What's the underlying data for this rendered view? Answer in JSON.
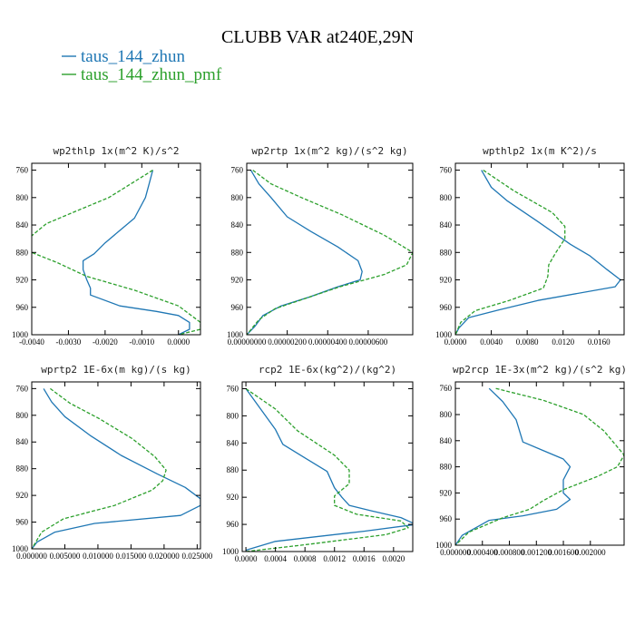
{
  "figure": {
    "title": "CLUBB VAR at240E,29N",
    "legend": [
      {
        "label": "taus_144_zhun",
        "color": "#1f77b4",
        "style": "solid"
      },
      {
        "label": "taus_144_zhun_pmf",
        "color": "#2ca02c",
        "style": "dashed"
      }
    ]
  },
  "chart_data": [
    {
      "type": "line",
      "title": "wp2thlp  1x(m^2 K)/s^2",
      "xlim": [
        -0.004,
        0.0006
      ],
      "ylim": [
        1000,
        750
      ],
      "xticks": [
        "-0.0040",
        "-0.0030",
        "-0.0020",
        "-0.0010",
        "0.0000"
      ],
      "xtick_values": [
        -0.004,
        -0.003,
        -0.002,
        -0.001,
        0.0
      ],
      "yticks": [
        760,
        800,
        840,
        880,
        920,
        960,
        1000
      ],
      "series": [
        {
          "name": "taus_144_zhun",
          "color": "#1f77b4",
          "style": "solid",
          "x": [
            -0.0007,
            -0.0008,
            -0.0009,
            -0.0012,
            -0.0016,
            -0.002,
            -0.0023,
            -0.0026,
            -0.0026,
            -0.0025,
            -0.0024,
            -0.0024,
            -0.0016,
            -0.0006,
            0.0,
            0.0003,
            0.0003,
            0.0
          ],
          "y": [
            760,
            780,
            800,
            830,
            848,
            866,
            882,
            892,
            905,
            920,
            932,
            942,
            958,
            966,
            972,
            982,
            992,
            1000
          ]
        },
        {
          "name": "taus_144_zhun_pmf",
          "color": "#2ca02c",
          "style": "dashed",
          "x": [
            -0.0007,
            -0.0013,
            -0.0019,
            -0.0028,
            -0.0036,
            -0.0041,
            -0.004,
            -0.0033,
            -0.0025,
            -0.0012,
            0.0,
            0.0003,
            0.0006,
            0.0006,
            0.0
          ],
          "y": [
            760,
            780,
            800,
            820,
            838,
            860,
            880,
            895,
            915,
            935,
            958,
            970,
            982,
            992,
            1000
          ]
        }
      ]
    },
    {
      "type": "line",
      "title": "wp2rtp  1x(m^2 kg)/(s^2 kg)",
      "xlim": [
        0,
        8.2e-06
      ],
      "ylim": [
        1000,
        750
      ],
      "xticks": [
        "0.00000000",
        "0.00000200",
        "0.00000400",
        "0.00000600"
      ],
      "xtick_values": [
        0,
        2e-06,
        4e-06,
        6e-06
      ],
      "yticks": [
        760,
        800,
        840,
        880,
        920,
        960,
        1000
      ],
      "series": [
        {
          "name": "taus_144_zhun",
          "color": "#1f77b4",
          "style": "solid",
          "x": [
            2e-07,
            6e-07,
            1.2e-06,
            2e-06,
            3.2e-06,
            4.5e-06,
            5.5e-06,
            5.7e-06,
            5.6e-06,
            4.5e-06,
            3.1e-06,
            1.7e-06,
            8e-07,
            4e-07,
            0.0
          ],
          "y": [
            760,
            780,
            800,
            828,
            850,
            872,
            892,
            908,
            920,
            930,
            945,
            958,
            972,
            988,
            1000
          ]
        },
        {
          "name": "taus_144_zhun_pmf",
          "color": "#2ca02c",
          "style": "dashed",
          "x": [
            3e-07,
            1.2e-06,
            2.7e-06,
            4.7e-06,
            6.8e-06,
            8.2e-06,
            7.9e-06,
            6.8e-06,
            4.6e-06,
            2.8e-06,
            1.4e-06,
            6e-07,
            0.0
          ],
          "y": [
            760,
            780,
            800,
            825,
            855,
            880,
            898,
            912,
            930,
            948,
            962,
            978,
            1000
          ]
        }
      ]
    },
    {
      "type": "line",
      "title": "wpthlp2  1x(m K^2)/s",
      "xlim": [
        0,
        0.0188
      ],
      "ylim": [
        1000,
        750
      ],
      "xticks": [
        "0.0000",
        "0.0040",
        "0.0080",
        "0.0120",
        "0.0160"
      ],
      "xtick_values": [
        0,
        0.004,
        0.008,
        0.012,
        0.016
      ],
      "yticks": [
        760,
        800,
        840,
        880,
        920,
        960,
        1000
      ],
      "series": [
        {
          "name": "taus_144_zhun",
          "color": "#1f77b4",
          "style": "solid",
          "x": [
            0.0029,
            0.004,
            0.0058,
            0.0092,
            0.0128,
            0.015,
            0.0169,
            0.0184,
            0.0178,
            0.0092,
            0.0048,
            0.0015,
            0.0004,
            0.0
          ],
          "y": [
            760,
            785,
            805,
            835,
            868,
            885,
            905,
            920,
            930,
            950,
            964,
            975,
            990,
            1000
          ]
        },
        {
          "name": "taus_144_zhun_pmf",
          "color": "#2ca02c",
          "style": "dashed",
          "x": [
            0.0031,
            0.0065,
            0.0108,
            0.0122,
            0.0122,
            0.0112,
            0.0104,
            0.0103,
            0.0098,
            0.006,
            0.0022,
            0.0006,
            0.0
          ],
          "y": [
            760,
            790,
            822,
            842,
            860,
            880,
            898,
            915,
            932,
            950,
            965,
            982,
            1000
          ]
        }
      ]
    },
    {
      "type": "line",
      "title": "wprtp2  1E-6x(m kg)/(s kg)",
      "xlim": [
        0,
        0.0255
      ],
      "ylim": [
        1000,
        750
      ],
      "xticks": [
        "0.000000",
        "0.005000",
        "0.010000",
        "0.015000",
        "0.020000",
        "0.025000"
      ],
      "xtick_values": [
        0,
        0.005,
        0.01,
        0.015,
        0.02,
        0.025
      ],
      "yticks": [
        760,
        800,
        840,
        880,
        920,
        960,
        1000
      ],
      "series": [
        {
          "name": "taus_144_zhun",
          "color": "#1f77b4",
          "style": "solid",
          "x": [
            0.0018,
            0.003,
            0.005,
            0.0088,
            0.0135,
            0.019,
            0.0232,
            0.0255,
            0.0255,
            0.0225,
            0.0095,
            0.0035,
            0.0008,
            0.0
          ],
          "y": [
            760,
            780,
            802,
            830,
            860,
            888,
            908,
            925,
            935,
            950,
            962,
            975,
            990,
            1000
          ]
        },
        {
          "name": "taus_144_zhun_pmf",
          "color": "#2ca02c",
          "style": "dashed",
          "x": [
            0.0028,
            0.0058,
            0.0102,
            0.0152,
            0.0186,
            0.0203,
            0.0198,
            0.0182,
            0.0125,
            0.0048,
            0.0015,
            0.0
          ],
          "y": [
            760,
            782,
            805,
            835,
            862,
            882,
            898,
            912,
            935,
            955,
            975,
            1000
          ]
        }
      ]
    },
    {
      "type": "line",
      "title": "rcp2  1E-6x(kg^2)/(kg^2)",
      "xlim": [
        -5e-05,
        0.00226
      ],
      "ylim": [
        1000,
        750
      ],
      "xticks": [
        "0.0000",
        "0.0004",
        "0.0008",
        "0.0012",
        "0.0016",
        "0.0020"
      ],
      "xtick_values": [
        0,
        0.0004,
        0.0008,
        0.0012,
        0.0016,
        0.002
      ],
      "yticks": [
        760,
        800,
        840,
        880,
        920,
        960,
        1000
      ],
      "series": [
        {
          "name": "taus_144_zhun",
          "color": "#1f77b4",
          "style": "solid",
          "x": [
            0.0,
            0.0002,
            0.0004,
            0.0005,
            0.0008,
            0.0011,
            0.0012,
            0.0013,
            0.0014,
            0.0017,
            0.0021,
            0.0023,
            0.0016,
            0.0004,
            0.0
          ],
          "y": [
            760,
            790,
            820,
            842,
            862,
            882,
            906,
            920,
            932,
            940,
            950,
            960,
            970,
            985,
            998
          ]
        },
        {
          "name": "taus_144_zhun_pmf",
          "color": "#2ca02c",
          "style": "dashed",
          "x": [
            0.0,
            0.0004,
            0.0007,
            0.0012,
            0.0014,
            0.0014,
            0.0012,
            0.0012,
            0.0015,
            0.0021,
            0.0022,
            0.0019,
            0.0008,
            0.0
          ],
          "y": [
            760,
            790,
            822,
            858,
            880,
            900,
            918,
            932,
            945,
            955,
            965,
            975,
            990,
            1000
          ]
        }
      ]
    },
    {
      "type": "line",
      "title": "wp2rcp  1E-3x(m^2 kg)/(s^2 kg)",
      "xlim": [
        0,
        0.0025
      ],
      "ylim": [
        1000,
        750
      ],
      "xticks": [
        "0.000000",
        "0.000400",
        "0.000800",
        "0.001200",
        "0.001600",
        "0.002000"
      ],
      "xtick_values": [
        0,
        0.0004,
        0.0008,
        0.0012,
        0.0016,
        0.002
      ],
      "yticks": [
        760,
        800,
        840,
        880,
        920,
        960,
        1000
      ],
      "series": [
        {
          "name": "taus_144_zhun",
          "color": "#1f77b4",
          "style": "solid",
          "x": [
            0.0005,
            0.0007,
            0.0009,
            0.001,
            0.0013,
            0.0016,
            0.0017,
            0.0016,
            0.0016,
            0.0017,
            0.0015,
            0.001,
            0.0005,
            0.0001,
            0.0
          ],
          "y": [
            760,
            780,
            808,
            842,
            855,
            868,
            880,
            900,
            920,
            930,
            945,
            955,
            962,
            985,
            1000
          ]
        },
        {
          "name": "taus_144_zhun_pmf",
          "color": "#2ca02c",
          "style": "dashed",
          "x": [
            0.0006,
            0.0013,
            0.0019,
            0.0022,
            0.0025,
            0.0024,
            0.0021,
            0.0016,
            0.0013,
            0.0011,
            0.0007,
            0.0002,
            0.0
          ],
          "y": [
            760,
            778,
            800,
            825,
            862,
            880,
            895,
            915,
            932,
            945,
            958,
            980,
            1000
          ]
        }
      ]
    }
  ]
}
